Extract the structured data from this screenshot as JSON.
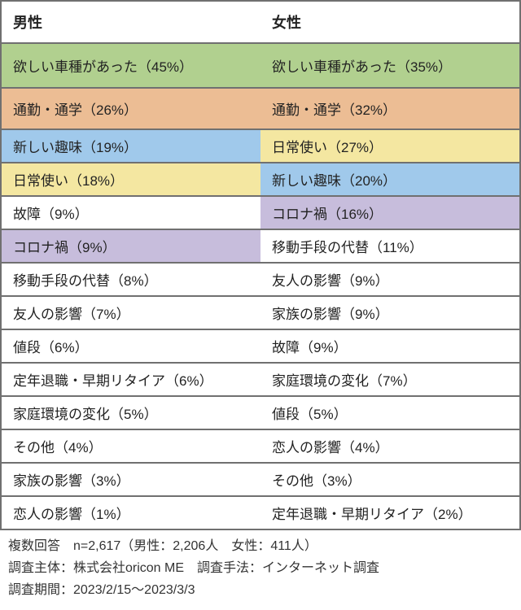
{
  "header": {
    "male": "男性",
    "female": "女性"
  },
  "palette": {
    "green": "#b1d08f",
    "orange": "#ecbd94",
    "blue": "#a0c9eb",
    "yellow": "#f4e7a1",
    "purple": "#c7bddc",
    "white": "#ffffff",
    "border": "#707070",
    "text": "#222222"
  },
  "font": {
    "header_size": 18,
    "cell_size": 17,
    "footer_size": 16,
    "family": "Hiragino Kaku Gothic ProN, Meiryo, sans-serif"
  },
  "row_colors": {
    "desired_model": "green",
    "commute": "orange",
    "new_hobby": "blue",
    "daily_use": "yellow",
    "covid": "purple",
    "none": "white"
  },
  "rows": [
    {
      "male": {
        "label": "欲しい車種があった",
        "pct": 45,
        "color": "green"
      },
      "female": {
        "label": "欲しい車種があった",
        "pct": 35,
        "color": "green"
      }
    },
    {
      "male": {
        "label": "通勤・通学",
        "pct": 26,
        "color": "orange"
      },
      "female": {
        "label": "通勤・通学",
        "pct": 32,
        "color": "orange"
      }
    },
    {
      "male": {
        "label": "新しい趣味",
        "pct": 19,
        "color": "blue"
      },
      "female": {
        "label": "日常使い",
        "pct": 27,
        "color": "yellow"
      }
    },
    {
      "male": {
        "label": "日常使い",
        "pct": 18,
        "color": "yellow"
      },
      "female": {
        "label": "新しい趣味",
        "pct": 20,
        "color": "blue"
      }
    },
    {
      "male": {
        "label": "故障",
        "pct": 9,
        "color": "white"
      },
      "female": {
        "label": "コロナ禍",
        "pct": 16,
        "color": "purple"
      }
    },
    {
      "male": {
        "label": "コロナ禍",
        "pct": 9,
        "color": "purple"
      },
      "female": {
        "label": "移動手段の代替",
        "pct": 11,
        "color": "white"
      }
    },
    {
      "male": {
        "label": "移動手段の代替",
        "pct": 8,
        "color": "white"
      },
      "female": {
        "label": "友人の影響",
        "pct": 9,
        "color": "white"
      }
    },
    {
      "male": {
        "label": "友人の影響",
        "pct": 7,
        "color": "white"
      },
      "female": {
        "label": "家族の影響",
        "pct": 9,
        "color": "white"
      }
    },
    {
      "male": {
        "label": "値段",
        "pct": 6,
        "color": "white"
      },
      "female": {
        "label": "故障",
        "pct": 9,
        "color": "white"
      }
    },
    {
      "male": {
        "label": "定年退職・早期リタイア",
        "pct": 6,
        "color": "white"
      },
      "female": {
        "label": "家庭環境の変化",
        "pct": 7,
        "color": "white"
      }
    },
    {
      "male": {
        "label": "家庭環境の変化",
        "pct": 5,
        "color": "white"
      },
      "female": {
        "label": "値段",
        "pct": 5,
        "color": "white"
      }
    },
    {
      "male": {
        "label": "その他",
        "pct": 4,
        "color": "white"
      },
      "female": {
        "label": "恋人の影響",
        "pct": 4,
        "color": "white"
      }
    },
    {
      "male": {
        "label": "家族の影響",
        "pct": 3,
        "color": "white"
      },
      "female": {
        "label": "その他",
        "pct": 3,
        "color": "white"
      }
    },
    {
      "male": {
        "label": "恋人の影響",
        "pct": 1,
        "color": "white"
      },
      "female": {
        "label": "定年退職・早期リタイア",
        "pct": 2,
        "color": "white"
      }
    }
  ],
  "row_heights": {
    "row0": 52,
    "row1": 48,
    "default": 36
  },
  "footer": {
    "line1": "複数回答　n=2,617（男性：2,206人　女性：411人）",
    "line2": "調査主体：株式会社oricon ME　調査手法：インターネット調査",
    "line3": "調査期間：2023/2/15～2023/3/3"
  }
}
